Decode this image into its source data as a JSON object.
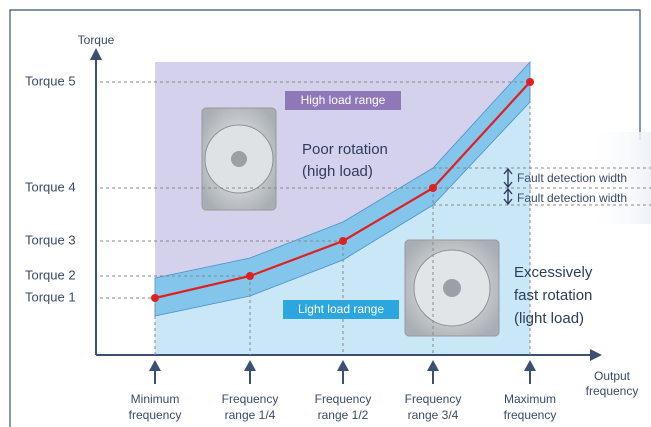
{
  "y_axis_label": "Torque",
  "x_axis_label": [
    "Output",
    "frequency"
  ],
  "torque_levels": [
    "Torque 1",
    "Torque 2",
    "Torque 3",
    "Torque 4",
    "Torque 5"
  ],
  "frequency_points": [
    [
      "Minimum",
      "frequency"
    ],
    [
      "Frequency",
      "range 1/4"
    ],
    [
      "Frequency",
      "range 1/2"
    ],
    [
      "Frequency",
      "range 3/4"
    ],
    [
      "Maximum",
      "frequency"
    ]
  ],
  "regions": {
    "high": "High load range",
    "light": "Light load range"
  },
  "annotations": {
    "poor_rotation": [
      "Poor rotation",
      "(high load)"
    ],
    "fast_rotation": [
      "Excessively",
      "fast rotation",
      "(light load)"
    ],
    "fault_width_upper": "Fault detection width",
    "fault_width_lower": "Fault detection width"
  }
}
